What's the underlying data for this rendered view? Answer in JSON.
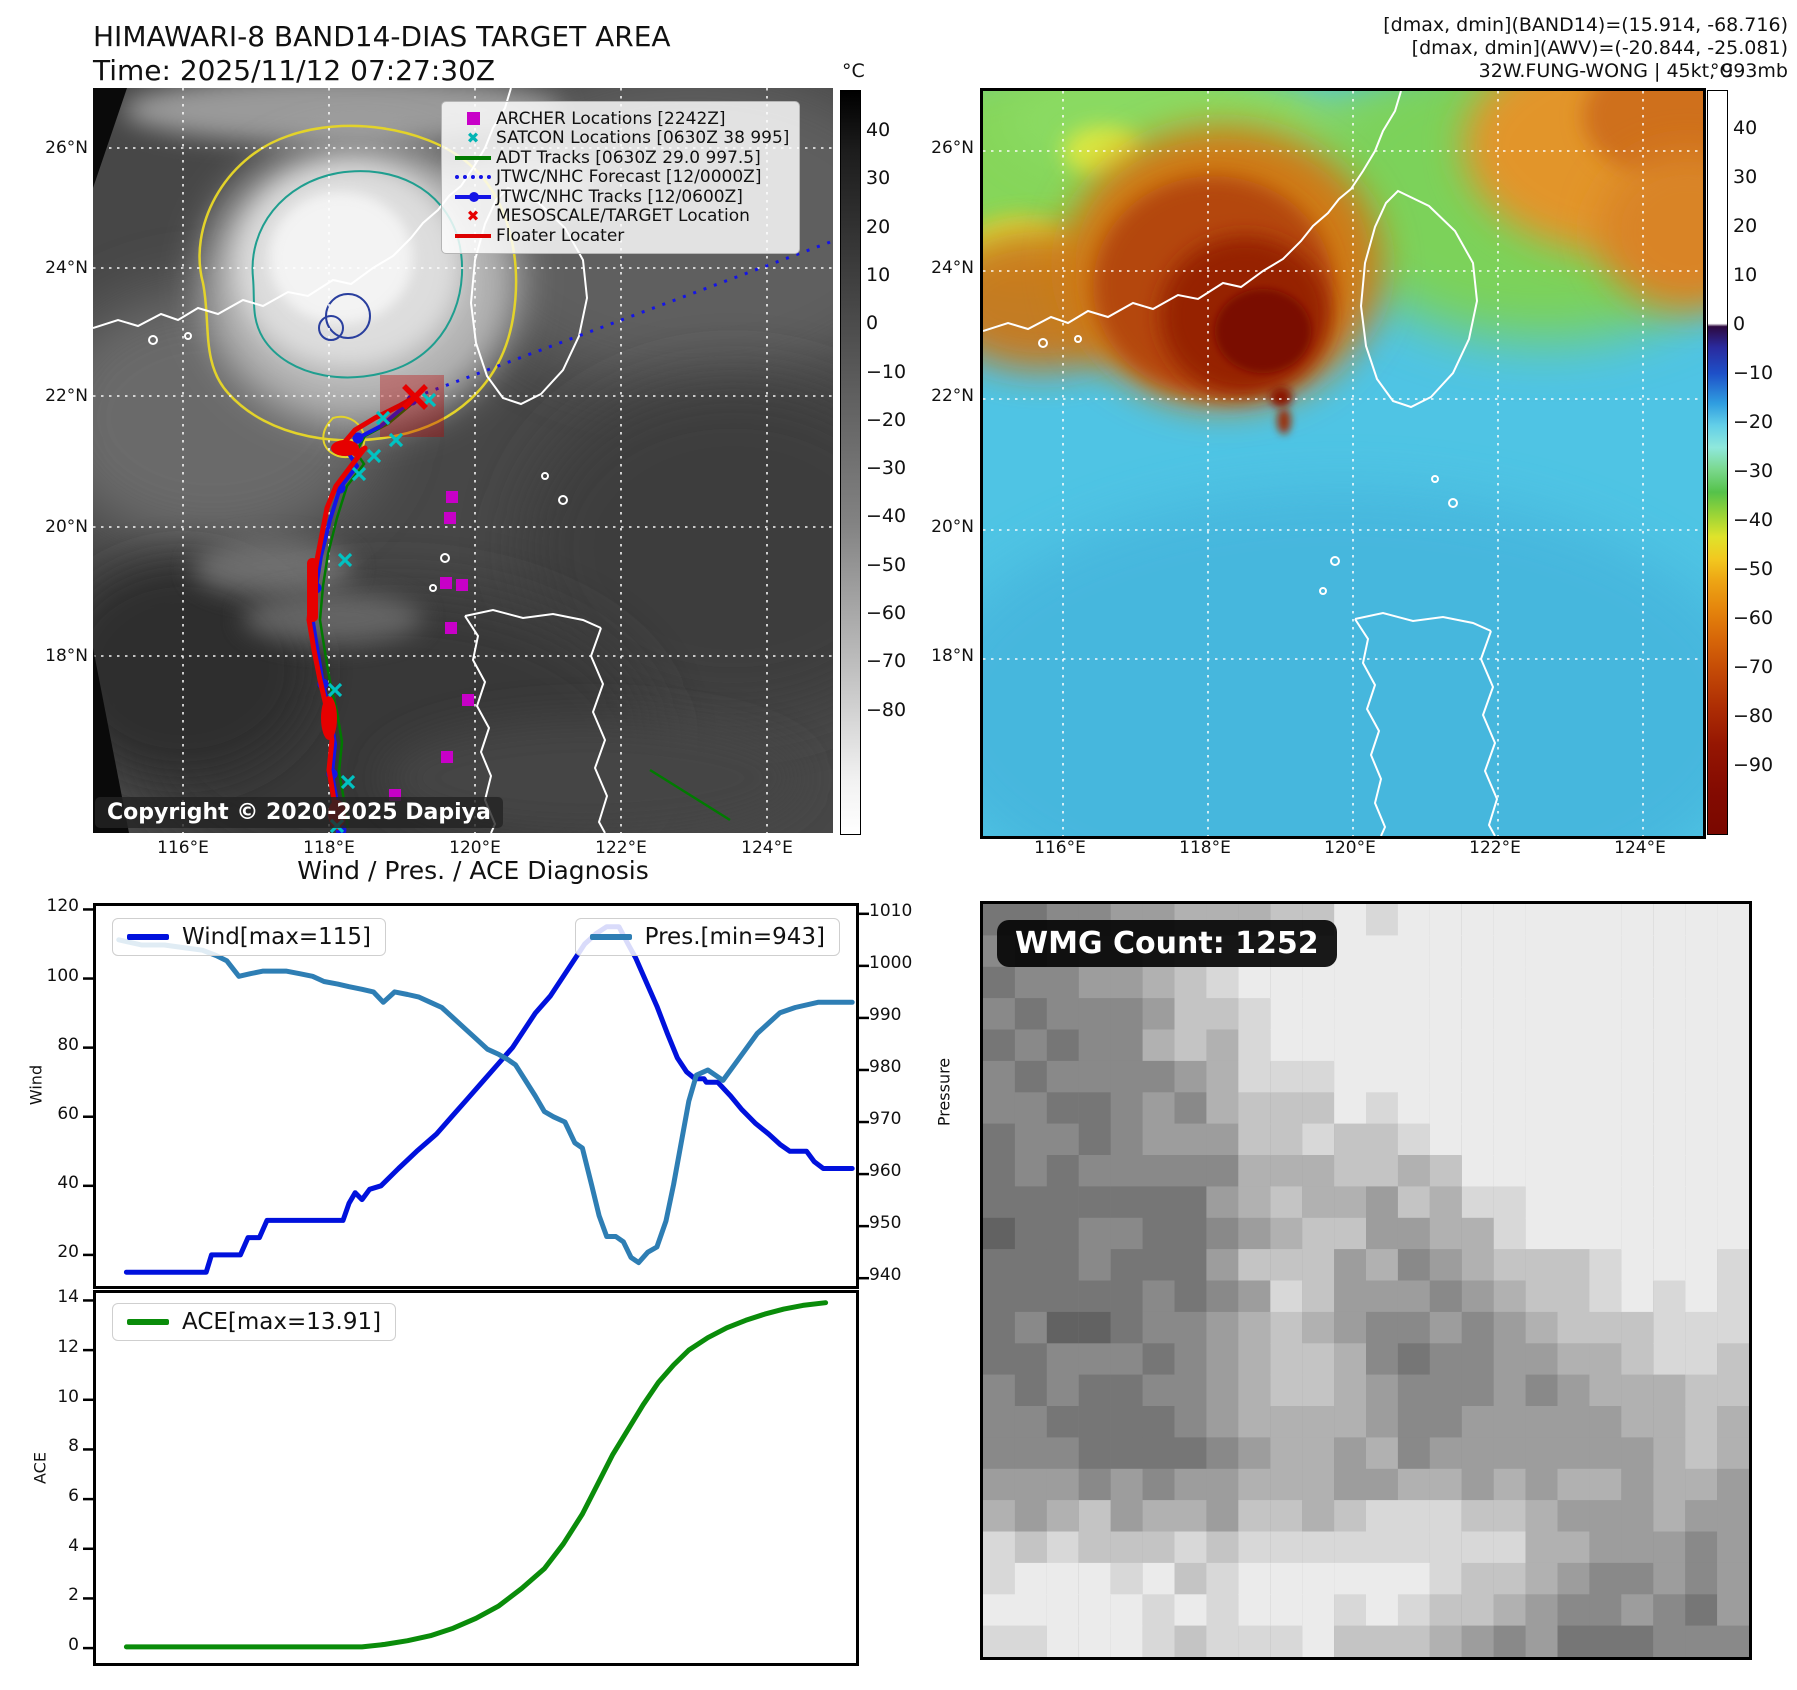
{
  "left_map": {
    "title_line1": "HIMAWARI-8 BAND14-DIAS TARGET AREA",
    "title_line2": "Time: 2025/11/12 07:27:30Z",
    "copyright": "Copyright © 2020-2025 Dapiya",
    "lat_ticks": [
      "26°N",
      "24°N",
      "22°N",
      "20°N",
      "18°N"
    ],
    "lon_ticks": [
      "116°E",
      "118°E",
      "120°E",
      "122°E",
      "124°E"
    ],
    "legend": [
      {
        "label": "ARCHER Locations [2242Z]",
        "marker": "square",
        "color": "#c800c8"
      },
      {
        "label": "SATCON Locations [0630Z 38 995]",
        "marker": "x",
        "color": "#00b4b4"
      },
      {
        "label": "ADT Tracks [0630Z 29.0 997.5]",
        "marker": "line",
        "color": "#007a00"
      },
      {
        "label": "JTWC/NHC Forecast [12/0000Z]",
        "marker": "dotted",
        "color": "#1414e6"
      },
      {
        "label": "JTWC/NHC Tracks [12/0600Z]",
        "marker": "line-dot",
        "color": "#1414e6"
      },
      {
        "label": "MESOSCALE/TARGET Location",
        "marker": "x",
        "color": "#e60000"
      },
      {
        "label": "Floater Locater",
        "marker": "line",
        "color": "#dc0000"
      }
    ],
    "colorbar": {
      "unit": "°C",
      "ticks": [
        "40",
        "30",
        "20",
        "10",
        "0",
        "−10",
        "−20",
        "−30",
        "−40",
        "−50",
        "−60",
        "−70",
        "−80"
      ]
    }
  },
  "right_map": {
    "header_line1": "[dmax, dmin](BAND14)=(15.914, -68.716)",
    "header_line2": "[dmax, dmin](AWV)=(-20.844, -25.081)",
    "header_line3": "32W.FUNG-WONG | 45kt, 993mb",
    "lat_ticks": [
      "26°N",
      "24°N",
      "22°N",
      "20°N",
      "18°N"
    ],
    "lon_ticks": [
      "116°E",
      "118°E",
      "120°E",
      "122°E",
      "124°E"
    ],
    "colorbar": {
      "unit": "°C",
      "ticks": [
        "40",
        "30",
        "20",
        "10",
        "0",
        "−10",
        "−20",
        "−30",
        "−40",
        "−50",
        "−60",
        "−70",
        "−80",
        "−90"
      ]
    }
  },
  "diagnosis": {
    "title": "Wind / Pres. / ACE Diagnosis"
  },
  "wmg": {
    "count_label": "WMG Count: 1252"
  },
  "chart_data": [
    {
      "type": "line",
      "title": "Wind / Pres. / ACE Diagnosis",
      "xlabel": "",
      "grid": false,
      "legend_position": "top-left / top-right",
      "ylabel_left": "Wind",
      "ylabel_right": "Pressure",
      "yticks_left": [
        120,
        100,
        80,
        60,
        40,
        20
      ],
      "yticks_right": [
        1010,
        1000,
        990,
        980,
        970,
        960,
        950,
        940
      ],
      "series": [
        {
          "name": "Wind[max=115]",
          "color": "#0011dd",
          "yaxis": "left",
          "ylim": [
            11,
            121
          ],
          "points": [
            [
              0.04,
              15
            ],
            [
              0.145,
              15
            ],
            [
              0.152,
              20
            ],
            [
              0.19,
              20
            ],
            [
              0.2,
              25
            ],
            [
              0.215,
              25
            ],
            [
              0.225,
              30
            ],
            [
              0.325,
              30
            ],
            [
              0.333,
              35
            ],
            [
              0.341,
              38
            ],
            [
              0.35,
              36
            ],
            [
              0.36,
              39
            ],
            [
              0.375,
              40
            ],
            [
              0.398,
              45
            ],
            [
              0.422,
              50
            ],
            [
              0.448,
              55
            ],
            [
              0.468,
              60
            ],
            [
              0.488,
              65
            ],
            [
              0.508,
              70
            ],
            [
              0.528,
              75
            ],
            [
              0.548,
              80
            ],
            [
              0.563,
              85
            ],
            [
              0.578,
              90
            ],
            [
              0.598,
              95
            ],
            [
              0.613,
              100
            ],
            [
              0.628,
              105
            ],
            [
              0.643,
              110
            ],
            [
              0.658,
              113
            ],
            [
              0.672,
              115
            ],
            [
              0.688,
              115
            ],
            [
              0.7,
              110
            ],
            [
              0.71,
              106
            ],
            [
              0.722,
              100
            ],
            [
              0.738,
              92
            ],
            [
              0.752,
              84
            ],
            [
              0.765,
              77
            ],
            [
              0.777,
              73
            ],
            [
              0.788,
              71
            ],
            [
              0.8,
              71
            ],
            [
              0.803,
              70
            ],
            [
              0.818,
              70
            ],
            [
              0.835,
              66
            ],
            [
              0.85,
              62
            ],
            [
              0.868,
              58
            ],
            [
              0.885,
              55
            ],
            [
              0.9,
              52
            ],
            [
              0.913,
              50
            ],
            [
              0.935,
              50
            ],
            [
              0.945,
              47
            ],
            [
              0.957,
              45
            ],
            [
              0.995,
              45
            ]
          ]
        },
        {
          "name": "Pres.[min=943]",
          "color": "#2e7eb4",
          "yaxis": "right",
          "ylim": [
            938.5,
            1011.5
          ],
          "points": [
            [
              0.03,
              1005
            ],
            [
              0.06,
              1004
            ],
            [
              0.09,
              1004
            ],
            [
              0.115,
              1003.5
            ],
            [
              0.14,
              1003
            ],
            [
              0.158,
              1002
            ],
            [
              0.172,
              1001
            ],
            [
              0.188,
              998
            ],
            [
              0.203,
              998.5
            ],
            [
              0.22,
              999
            ],
            [
              0.25,
              999
            ],
            [
              0.268,
              998.5
            ],
            [
              0.285,
              998
            ],
            [
              0.3,
              997
            ],
            [
              0.318,
              996.5
            ],
            [
              0.333,
              996
            ],
            [
              0.35,
              995.5
            ],
            [
              0.365,
              995
            ],
            [
              0.378,
              993
            ],
            [
              0.393,
              995
            ],
            [
              0.41,
              994.5
            ],
            [
              0.425,
              994
            ],
            [
              0.44,
              993
            ],
            [
              0.455,
              992
            ],
            [
              0.47,
              990
            ],
            [
              0.485,
              988
            ],
            [
              0.5,
              986
            ],
            [
              0.515,
              984
            ],
            [
              0.53,
              983
            ],
            [
              0.542,
              982
            ],
            [
              0.552,
              981
            ],
            [
              0.565,
              978
            ],
            [
              0.578,
              975
            ],
            [
              0.59,
              972
            ],
            [
              0.602,
              971
            ],
            [
              0.617,
              970
            ],
            [
              0.63,
              966
            ],
            [
              0.64,
              965
            ],
            [
              0.652,
              958
            ],
            [
              0.662,
              952
            ],
            [
              0.672,
              948
            ],
            [
              0.684,
              948
            ],
            [
              0.694,
              947
            ],
            [
              0.704,
              944
            ],
            [
              0.714,
              943
            ],
            [
              0.726,
              945
            ],
            [
              0.738,
              946
            ],
            [
              0.75,
              951
            ],
            [
              0.76,
              958
            ],
            [
              0.77,
              966
            ],
            [
              0.78,
              974
            ],
            [
              0.79,
              979
            ],
            [
              0.805,
              980
            ],
            [
              0.815,
              979
            ],
            [
              0.825,
              978
            ],
            [
              0.84,
              981
            ],
            [
              0.855,
              984
            ],
            [
              0.87,
              987
            ],
            [
              0.885,
              989
            ],
            [
              0.9,
              991
            ],
            [
              0.92,
              992
            ],
            [
              0.95,
              993
            ],
            [
              0.995,
              993
            ]
          ]
        }
      ]
    },
    {
      "type": "line",
      "xlabel": "",
      "grid": false,
      "legend_position": "top-left",
      "ylabel_left": "ACE",
      "yticks_left": [
        14,
        12,
        10,
        8,
        6,
        4,
        2,
        0
      ],
      "series": [
        {
          "name": "ACE[max=13.91]",
          "color": "#0a8c0a",
          "yaxis": "left",
          "ylim": [
            -0.6,
            14.3
          ],
          "points": [
            [
              0.04,
              0.05
            ],
            [
              0.35,
              0.05
            ],
            [
              0.38,
              0.15
            ],
            [
              0.41,
              0.3
            ],
            [
              0.44,
              0.5
            ],
            [
              0.47,
              0.8
            ],
            [
              0.5,
              1.2
            ],
            [
              0.53,
              1.7
            ],
            [
              0.56,
              2.4
            ],
            [
              0.59,
              3.2
            ],
            [
              0.615,
              4.2
            ],
            [
              0.64,
              5.4
            ],
            [
              0.66,
              6.6
            ],
            [
              0.68,
              7.8
            ],
            [
              0.7,
              8.8
            ],
            [
              0.72,
              9.8
            ],
            [
              0.74,
              10.7
            ],
            [
              0.76,
              11.4
            ],
            [
              0.78,
              12.0
            ],
            [
              0.805,
              12.5
            ],
            [
              0.83,
              12.9
            ],
            [
              0.855,
              13.2
            ],
            [
              0.88,
              13.45
            ],
            [
              0.905,
              13.65
            ],
            [
              0.93,
              13.8
            ],
            [
              0.96,
              13.91
            ]
          ]
        }
      ]
    }
  ]
}
